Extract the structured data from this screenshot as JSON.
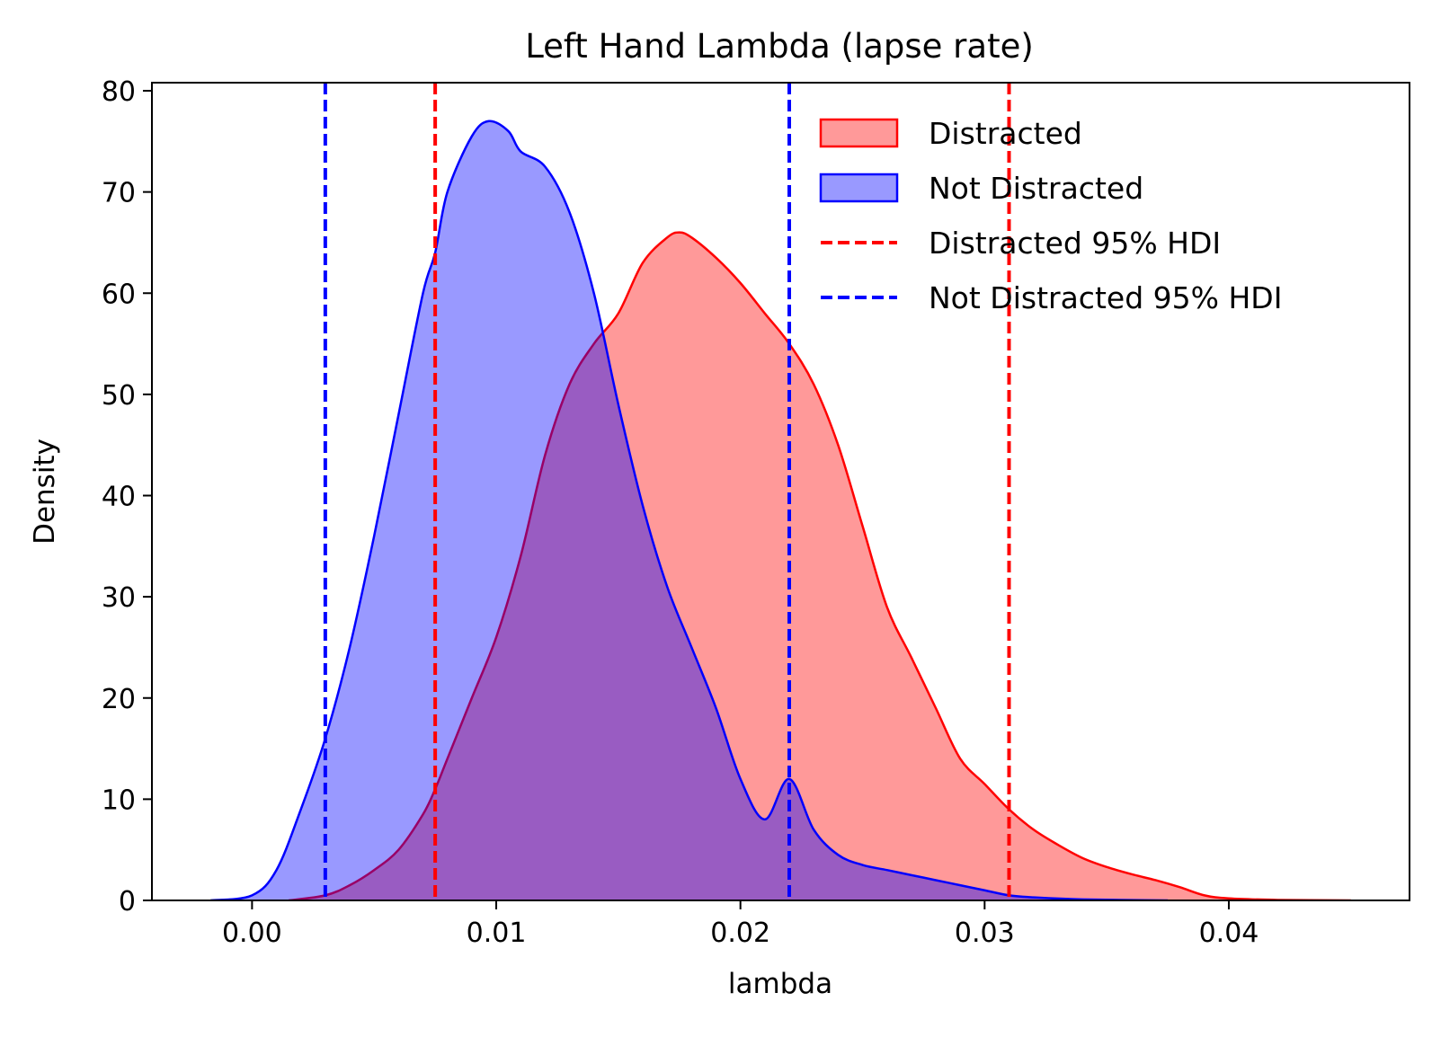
{
  "chart_data": {
    "type": "area",
    "title": "Left Hand Lambda (lapse rate)",
    "xlabel": "lambda",
    "ylabel": "Density",
    "xlim": [
      -0.0041,
      0.0474
    ],
    "ylim": [
      0,
      80.8
    ],
    "xticks": [
      0.0,
      0.01,
      0.02,
      0.03,
      0.04
    ],
    "xtick_labels": [
      "0.00",
      "0.01",
      "0.02",
      "0.03",
      "0.04"
    ],
    "yticks": [
      0,
      10,
      20,
      30,
      40,
      50,
      60,
      70,
      80
    ],
    "ytick_labels": [
      "0",
      "10",
      "20",
      "30",
      "40",
      "50",
      "60",
      "70",
      "80"
    ],
    "grid": false,
    "legend_position": "top-right",
    "series": [
      {
        "name": "Distracted",
        "kind": "density",
        "color": "#ff0000",
        "fill_opacity": 0.4,
        "x": [
          0.0015,
          0.003,
          0.004,
          0.005,
          0.006,
          0.007,
          0.0075,
          0.008,
          0.009,
          0.01,
          0.011,
          0.012,
          0.013,
          0.014,
          0.015,
          0.016,
          0.017,
          0.0175,
          0.018,
          0.019,
          0.02,
          0.021,
          0.022,
          0.023,
          0.024,
          0.025,
          0.026,
          0.027,
          0.028,
          0.029,
          0.03,
          0.031,
          0.032,
          0.033,
          0.034,
          0.035,
          0.036,
          0.037,
          0.038,
          0.039,
          0.04,
          0.042,
          0.045
        ],
        "y": [
          0,
          0.5,
          1.5,
          3,
          5,
          8.5,
          11,
          14,
          20,
          26,
          34,
          44,
          51,
          55,
          58,
          63,
          65.5,
          66,
          65.5,
          63.5,
          61,
          58,
          55,
          51,
          45,
          37,
          29,
          24,
          19,
          14,
          11.5,
          9,
          7,
          5.5,
          4.2,
          3.3,
          2.6,
          2,
          1.3,
          0.5,
          0.2,
          0.05,
          0
        ]
      },
      {
        "name": "Not Distracted",
        "kind": "density",
        "color": "#0000ff",
        "fill_opacity": 0.4,
        "x": [
          -0.0017,
          0.0,
          0.001,
          0.002,
          0.003,
          0.004,
          0.005,
          0.006,
          0.007,
          0.0075,
          0.008,
          0.009,
          0.0097,
          0.0105,
          0.011,
          0.012,
          0.013,
          0.014,
          0.015,
          0.016,
          0.017,
          0.018,
          0.019,
          0.02,
          0.021,
          0.022,
          0.023,
          0.024,
          0.025,
          0.026,
          0.027,
          0.028,
          0.029,
          0.03,
          0.031,
          0.032,
          0.034,
          0.0375
        ],
        "y": [
          0,
          0.5,
          3,
          9,
          16,
          25,
          36,
          48,
          60,
          64,
          70,
          75.5,
          77,
          76,
          74,
          72.5,
          68,
          60,
          49,
          39,
          31,
          25,
          19,
          12,
          8,
          12,
          7,
          4.5,
          3.5,
          3,
          2.5,
          2,
          1.5,
          1,
          0.5,
          0.3,
          0.1,
          0
        ]
      }
    ],
    "hdi_lines": [
      {
        "name": "Distracted 95% HDI",
        "color": "#ff0000",
        "lower": 0.0075,
        "upper": 0.031
      },
      {
        "name": "Not Distracted 95% HDI",
        "color": "#0000ff",
        "lower": 0.003,
        "upper": 0.022
      }
    ],
    "legend": [
      {
        "label": "Distracted",
        "kind": "patch",
        "color": "#ff0000"
      },
      {
        "label": "Not Distracted",
        "kind": "patch",
        "color": "#0000ff"
      },
      {
        "label": "Distracted 95% HDI",
        "kind": "dashed-line",
        "color": "#ff0000"
      },
      {
        "label": "Not Distracted 95% HDI",
        "kind": "dashed-line",
        "color": "#0000ff"
      }
    ]
  }
}
